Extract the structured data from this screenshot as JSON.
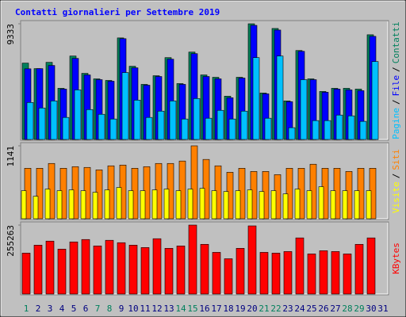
{
  "legend_separator": "/",
  "chart_data": [
    {
      "type": "bar",
      "title": "Contatti giornalieri per Settembre 2019",
      "categories": [
        "1",
        "2",
        "3",
        "4",
        "5",
        "6",
        "7",
        "8",
        "9",
        "10",
        "11",
        "12",
        "13",
        "14",
        "15",
        "16",
        "17",
        "18",
        "19",
        "20",
        "21",
        "22",
        "23",
        "24",
        "25",
        "26",
        "27",
        "28",
        "29",
        "30",
        "31"
      ],
      "ylim": [
        0,
        9333
      ],
      "yticks": [
        9333
      ],
      "series": [
        {
          "name": "Contatti",
          "color": "#00805c",
          "values": [
            6160,
            5715,
            6223,
            4128,
            6731,
            5334,
            4890,
            4763,
            8192,
            5906,
            4445,
            5144,
            6604,
            4509,
            7049,
            5207,
            5017,
            3493,
            5017,
            9333,
            3747,
            8954,
            3112,
            7176,
            4890,
            3874,
            4128,
            4128,
            4064,
            8446,
            null
          ]
        },
        {
          "name": "File",
          "color": "#0000ff",
          "values": [
            5700,
            5715,
            5970,
            4064,
            6540,
            5207,
            4826,
            4700,
            8130,
            5780,
            4380,
            5080,
            6477,
            4445,
            6922,
            5080,
            4890,
            3366,
            4954,
            9206,
            3683,
            8827,
            3049,
            7112,
            4826,
            3810,
            4064,
            4000,
            3937,
            8319,
            null
          ]
        },
        {
          "name": "Pagine",
          "color": "#00c0ff",
          "values": [
            2985,
            2540,
            3112,
            1778,
            4001,
            2413,
            2032,
            1651,
            5398,
            3175,
            1778,
            2286,
            3112,
            1651,
            3302,
            1715,
            2350,
            1651,
            2286,
            6604,
            1715,
            6731,
            953,
            4826,
            1524,
            1524,
            1969,
            1905,
            1461,
            6287,
            null
          ]
        }
      ]
    },
    {
      "type": "bar",
      "categories": [
        "1",
        "2",
        "3",
        "4",
        "5",
        "6",
        "7",
        "8",
        "9",
        "10",
        "11",
        "12",
        "13",
        "14",
        "15",
        "16",
        "17",
        "18",
        "19",
        "20",
        "21",
        "22",
        "23",
        "24",
        "25",
        "26",
        "27",
        "28",
        "29",
        "30",
        "31"
      ],
      "ylim": [
        0,
        1141
      ],
      "yticks": [
        1141
      ],
      "series": [
        {
          "name": "Siti",
          "color": "#ff8000",
          "values": [
            790,
            790,
            865,
            790,
            815,
            803,
            765,
            828,
            840,
            790,
            815,
            865,
            865,
            903,
            1141,
            928,
            828,
            727,
            790,
            740,
            740,
            690,
            790,
            790,
            853,
            790,
            790,
            740,
            790,
            790,
            null
          ]
        },
        {
          "name": "Visite",
          "color": "#ffff00",
          "values": [
            439,
            351,
            464,
            439,
            451,
            439,
            414,
            451,
            489,
            439,
            439,
            451,
            464,
            439,
            464,
            476,
            439,
            426,
            439,
            451,
            426,
            439,
            389,
            464,
            439,
            501,
            439,
            439,
            439,
            439,
            null
          ]
        }
      ]
    },
    {
      "type": "bar",
      "categories": [
        "1",
        "2",
        "3",
        "4",
        "5",
        "6",
        "7",
        "8",
        "9",
        "10",
        "11",
        "12",
        "13",
        "14",
        "15",
        "16",
        "17",
        "18",
        "19",
        "20",
        "21",
        "22",
        "23",
        "24",
        "25",
        "26",
        "27",
        "28",
        "29",
        "30",
        "31"
      ],
      "category_colors": [
        "#00805c",
        "#000080",
        "#000080",
        "#000080",
        "#000080",
        "#000080",
        "#00805c",
        "#00805c",
        "#000080",
        "#000080",
        "#000080",
        "#000080",
        "#000080",
        "#00805c",
        "#00805c",
        "#000080",
        "#000080",
        "#000080",
        "#000080",
        "#000080",
        "#00805c",
        "#00805c",
        "#000080",
        "#000080",
        "#000080",
        "#000080",
        "#000080",
        "#00805c",
        "#00805c",
        "#000080",
        "#000080"
      ],
      "ylim": [
        0,
        255263
      ],
      "yticks": [
        255263
      ],
      "series": [
        {
          "name": "KBytes",
          "color": "#ff0000",
          "values": [
            151400,
            181000,
            195900,
            166200,
            192900,
            201800,
            178100,
            198900,
            190000,
            181000,
            172100,
            204800,
            169200,
            178100,
            255263,
            184000,
            154300,
            130600,
            169200,
            252300,
            154300,
            151400,
            157300,
            207800,
            148400,
            160300,
            157300,
            148400,
            184000,
            207800,
            null
          ]
        }
      ]
    }
  ]
}
